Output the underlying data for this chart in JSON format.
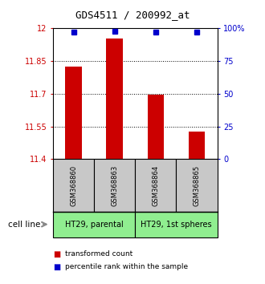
{
  "title": "GDS4511 / 200992_at",
  "samples": [
    "GSM368860",
    "GSM368863",
    "GSM368864",
    "GSM368865"
  ],
  "red_values": [
    11.825,
    11.955,
    11.695,
    11.525
  ],
  "blue_values": [
    97,
    98,
    97,
    97
  ],
  "ylim_left": [
    11.4,
    12.0
  ],
  "ylim_right": [
    0,
    100
  ],
  "yticks_left": [
    11.4,
    11.55,
    11.7,
    11.85,
    12.0
  ],
  "ytick_labels_left": [
    "11.4",
    "11.55",
    "11.7",
    "11.85",
    "12"
  ],
  "yticks_right": [
    0,
    25,
    50,
    75,
    100
  ],
  "ytick_labels_right": [
    "0",
    "25",
    "50",
    "75",
    "100%"
  ],
  "hlines": [
    11.55,
    11.7,
    11.85
  ],
  "bar_color": "#cc0000",
  "dot_color": "#0000cc",
  "sample_box_color": "#c8c8c8",
  "group_color": "#90ee90",
  "background_color": "#ffffff",
  "cell_line_label": "cell line",
  "legend_red": "transformed count",
  "legend_blue": "percentile rank within the sample",
  "title_fontsize": 9,
  "axis_fontsize": 7,
  "label_fontsize": 6,
  "group_fontsize": 7
}
